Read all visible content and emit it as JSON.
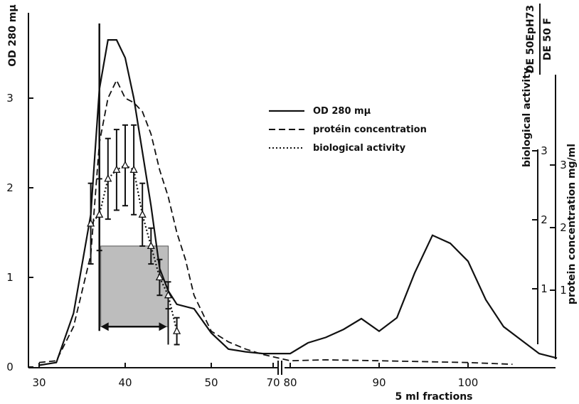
{
  "chart_data": {
    "type": "line",
    "xlabel": "5 ml fractions",
    "ylabel": "OD 280 mμ",
    "y2label": "protein concentration  mg/ml",
    "y3label": "biological activity",
    "top_right_label": {
      "top": "DE 50EpH73",
      "bottom": "DE 50   F"
    },
    "x_ticks_left": [
      "30",
      "40",
      "50",
      "70"
    ],
    "x_ticks_right": [
      "80",
      "90",
      "100"
    ],
    "y_ticks": [
      "0",
      "1",
      "2",
      "3"
    ],
    "y2_ticks": [
      "1",
      "2",
      "3"
    ],
    "y3_ticks": [
      "1",
      "2",
      "3"
    ],
    "legend": [
      {
        "name": "OD 280 mμ",
        "style": "solid"
      },
      {
        "name": "protéin concentration",
        "style": "dashed"
      },
      {
        "name": "biological activity",
        "style": "dotted"
      }
    ],
    "series": [
      {
        "name": "OD 280 mμ",
        "style": "solid",
        "points": [
          [
            30,
            0.02
          ],
          [
            32,
            0.05
          ],
          [
            34,
            0.6
          ],
          [
            36,
            1.7
          ],
          [
            37,
            3.1
          ],
          [
            38,
            3.65
          ],
          [
            39,
            3.65
          ],
          [
            40,
            3.45
          ],
          [
            41,
            3.0
          ],
          [
            42,
            2.4
          ],
          [
            43,
            1.8
          ],
          [
            44,
            1.1
          ],
          [
            45,
            0.85
          ],
          [
            46,
            0.7
          ],
          [
            48,
            0.65
          ],
          [
            50,
            0.38
          ],
          [
            52,
            0.2
          ],
          [
            54,
            0.17
          ],
          [
            56,
            0.15
          ],
          [
            80,
            0.15
          ],
          [
            82,
            0.27
          ],
          [
            84,
            0.33
          ],
          [
            86,
            0.42
          ],
          [
            88,
            0.54
          ],
          [
            90,
            0.4
          ],
          [
            92,
            0.55
          ],
          [
            94,
            1.05
          ],
          [
            96,
            1.47
          ],
          [
            98,
            1.38
          ],
          [
            100,
            1.18
          ],
          [
            102,
            0.75
          ],
          [
            104,
            0.45
          ],
          [
            106,
            0.3
          ],
          [
            108,
            0.15
          ],
          [
            110,
            0.1
          ]
        ]
      },
      {
        "name": "protéin concentration",
        "style": "dashed",
        "points": [
          [
            30,
            0.05
          ],
          [
            32,
            0.07
          ],
          [
            34,
            0.45
          ],
          [
            36,
            1.25
          ],
          [
            37,
            2.5
          ],
          [
            38,
            3.0
          ],
          [
            39,
            3.2
          ],
          [
            40,
            3.0
          ],
          [
            41,
            2.95
          ],
          [
            42,
            2.85
          ],
          [
            43,
            2.6
          ],
          [
            44,
            2.2
          ],
          [
            45,
            1.9
          ],
          [
            46,
            1.5
          ],
          [
            47,
            1.2
          ],
          [
            48,
            0.8
          ],
          [
            50,
            0.4
          ],
          [
            52,
            0.28
          ],
          [
            54,
            0.2
          ],
          [
            56,
            0.14
          ],
          [
            80,
            0.07
          ],
          [
            84,
            0.08
          ],
          [
            90,
            0.07
          ],
          [
            100,
            0.05
          ],
          [
            105,
            0.03
          ]
        ]
      },
      {
        "name": "biological activity",
        "style": "dotted",
        "points": [
          [
            36,
            1.6
          ],
          [
            37,
            1.7
          ],
          [
            38,
            2.1
          ],
          [
            39,
            2.2
          ],
          [
            40,
            2.25
          ],
          [
            41,
            2.2
          ],
          [
            42,
            1.7
          ],
          [
            43,
            1.35
          ],
          [
            44,
            1.0
          ],
          [
            45,
            0.8
          ],
          [
            46,
            0.4
          ]
        ],
        "errors": [
          0.45,
          0.4,
          0.45,
          0.45,
          0.45,
          0.5,
          0.35,
          0.2,
          0.2,
          0.15,
          0.15
        ]
      }
    ],
    "shaded_region": {
      "x": [
        37,
        45
      ],
      "y": [
        0.45,
        1.35
      ]
    },
    "vertical_line_x": 37,
    "arrow_x": [
      37,
      45
    ],
    "arrow_y": 0.45
  }
}
